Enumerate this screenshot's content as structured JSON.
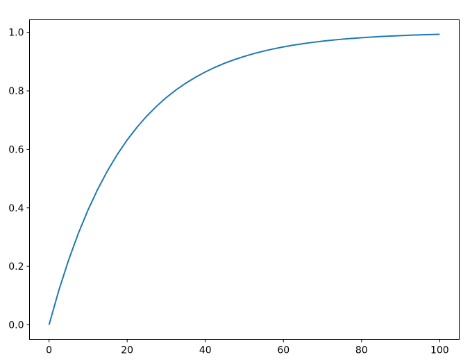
{
  "chart_data": {
    "type": "line",
    "title": "",
    "xlabel": "",
    "ylabel": "",
    "xlim": [
      -5,
      105
    ],
    "ylim": [
      -0.0497,
      1.043
    ],
    "xticks": [
      0,
      20,
      40,
      60,
      80,
      100
    ],
    "xtick_labels": [
      "0",
      "20",
      "40",
      "60",
      "80",
      "100"
    ],
    "yticks": [
      0.0,
      0.2,
      0.4,
      0.6,
      0.8,
      1.0
    ],
    "ytick_labels": [
      "0.0",
      "0.2",
      "0.4",
      "0.6",
      "0.8",
      "1.0"
    ],
    "grid": false,
    "series": [
      {
        "color": "#1f77b4",
        "x": [
          0,
          2.5,
          5,
          7.5,
          10,
          12.5,
          15,
          17.5,
          20,
          22.5,
          25,
          27.5,
          30,
          32.5,
          35,
          37.5,
          40,
          42.5,
          45,
          47.5,
          50,
          52.5,
          55,
          57.5,
          60,
          62.5,
          65,
          67.5,
          70,
          72.5,
          75,
          77.5,
          80,
          82.5,
          85,
          87.5,
          90,
          92.5,
          95,
          97.5,
          100
        ],
        "y": [
          0,
          0.1175,
          0.2212,
          0.3127,
          0.3935,
          0.4647,
          0.5276,
          0.5831,
          0.6321,
          0.6753,
          0.7135,
          0.7472,
          0.7769,
          0.8031,
          0.8262,
          0.8466,
          0.8647,
          0.8806,
          0.8946,
          0.907,
          0.9179,
          0.9276,
          0.9361,
          0.9436,
          0.9502,
          0.9561,
          0.9612,
          0.9658,
          0.9698,
          0.9733,
          0.9765,
          0.9792,
          0.9817,
          0.9838,
          0.9857,
          0.9874,
          0.9889,
          0.9902,
          0.9913,
          0.9924,
          0.9933
        ]
      }
    ]
  }
}
